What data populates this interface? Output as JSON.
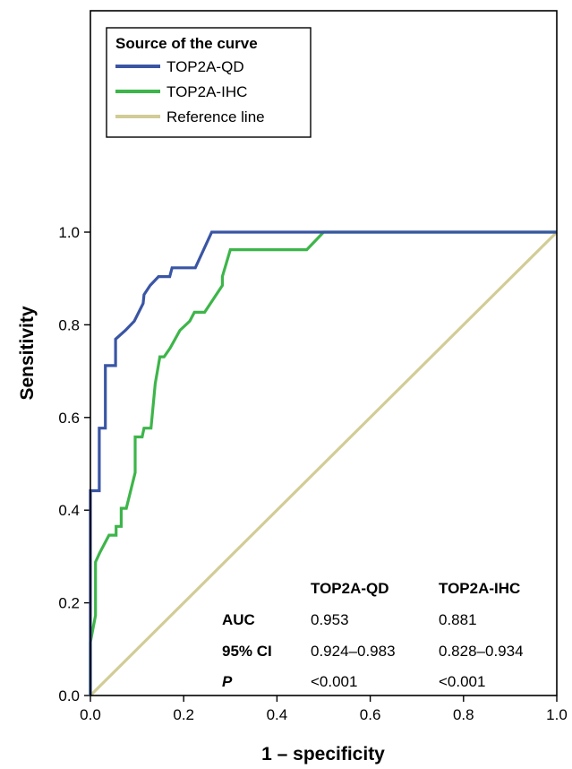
{
  "chart_data": {
    "type": "line",
    "xlabel": "1 – specificity",
    "ylabel": "Sensitivity",
    "xlim": [
      0,
      1
    ],
    "ylim": [
      0,
      1
    ],
    "x_ticks": [
      "0.0",
      "0.2",
      "0.4",
      "0.6",
      "0.8",
      "1.0"
    ],
    "y_ticks": [
      "0.0",
      "0.2",
      "0.4",
      "0.6",
      "0.8",
      "1.0"
    ],
    "legend": {
      "title": "Source of the curve",
      "position": "top-left"
    },
    "series": [
      {
        "name": "TOP2A-QD",
        "color": "#3a55a4",
        "points": [
          [
            0.0,
            0.0
          ],
          [
            0.0,
            0.442
          ],
          [
            0.019,
            0.442
          ],
          [
            0.019,
            0.577
          ],
          [
            0.032,
            0.577
          ],
          [
            0.032,
            0.712
          ],
          [
            0.054,
            0.712
          ],
          [
            0.054,
            0.769
          ],
          [
            0.075,
            0.788
          ],
          [
            0.094,
            0.808
          ],
          [
            0.113,
            0.846
          ],
          [
            0.115,
            0.865
          ],
          [
            0.128,
            0.885
          ],
          [
            0.146,
            0.904
          ],
          [
            0.17,
            0.904
          ],
          [
            0.175,
            0.923
          ],
          [
            0.225,
            0.923
          ],
          [
            0.26,
            1.0
          ],
          [
            0.491,
            1.0
          ],
          [
            1.0,
            1.0
          ]
        ]
      },
      {
        "name": "TOP2A-IHC",
        "color": "#3db54a",
        "points": [
          [
            0.0,
            0.0
          ],
          [
            0.0,
            0.115
          ],
          [
            0.011,
            0.173
          ],
          [
            0.011,
            0.288
          ],
          [
            0.02,
            0.308
          ],
          [
            0.04,
            0.346
          ],
          [
            0.055,
            0.346
          ],
          [
            0.055,
            0.365
          ],
          [
            0.066,
            0.365
          ],
          [
            0.066,
            0.404
          ],
          [
            0.077,
            0.404
          ],
          [
            0.096,
            0.481
          ],
          [
            0.096,
            0.558
          ],
          [
            0.111,
            0.558
          ],
          [
            0.115,
            0.577
          ],
          [
            0.13,
            0.577
          ],
          [
            0.139,
            0.673
          ],
          [
            0.149,
            0.731
          ],
          [
            0.158,
            0.731
          ],
          [
            0.171,
            0.75
          ],
          [
            0.192,
            0.788
          ],
          [
            0.213,
            0.808
          ],
          [
            0.223,
            0.827
          ],
          [
            0.245,
            0.827
          ],
          [
            0.283,
            0.885
          ],
          [
            0.283,
            0.904
          ],
          [
            0.3,
            0.962
          ],
          [
            0.464,
            0.962
          ],
          [
            0.5,
            1.0
          ],
          [
            1.0,
            1.0
          ]
        ]
      },
      {
        "name": "Reference line",
        "color": "#d2cc96",
        "points": [
          [
            0.0,
            0.0
          ],
          [
            1.0,
            1.0
          ]
        ]
      }
    ],
    "stats_table": {
      "columns": [
        "TOP2A-QD",
        "TOP2A-IHC"
      ],
      "rows": [
        {
          "label": "AUC",
          "italic": false,
          "values": [
            "0.953",
            "0.881"
          ]
        },
        {
          "label": "95% CI",
          "italic": false,
          "values": [
            "0.924–0.983",
            "0.828–0.934"
          ]
        },
        {
          "label": "P",
          "italic": true,
          "values": [
            "<0.001",
            "<0.001"
          ]
        }
      ]
    }
  }
}
